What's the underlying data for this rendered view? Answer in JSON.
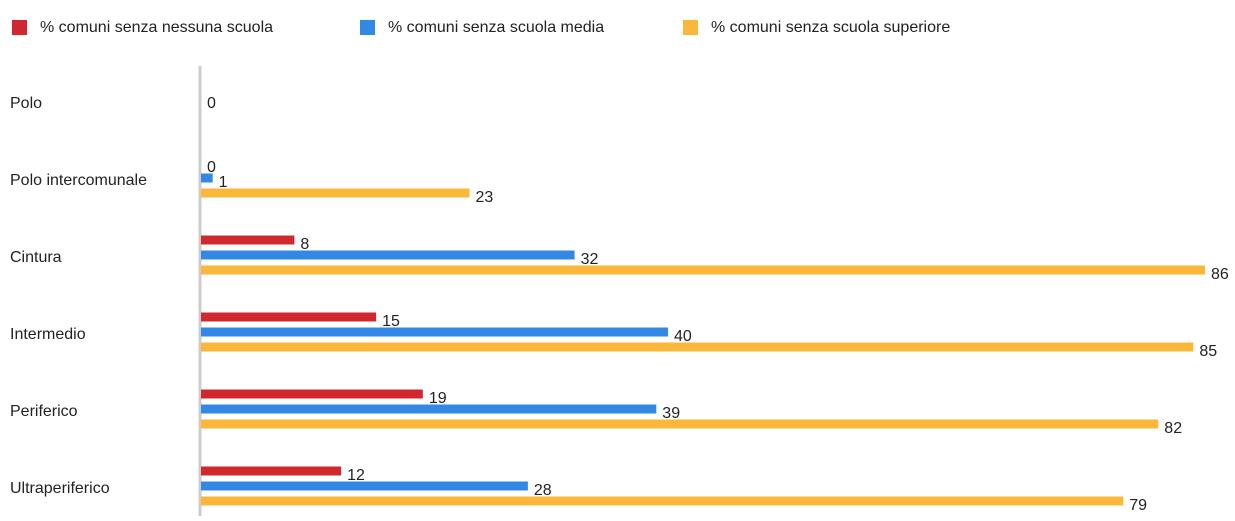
{
  "chart_data": {
    "type": "bar",
    "orientation": "horizontal",
    "categories": [
      "Polo",
      "Polo intercomunale",
      "Cintura",
      "Intermedio",
      "Periferico",
      "Ultraperiferico"
    ],
    "series": [
      {
        "name": "% comuni senza nessuna scuola",
        "color": "#d0282f",
        "values": [
          null,
          0,
          8,
          15,
          19,
          12
        ]
      },
      {
        "name": "% comuni senza scuola media",
        "color": "#3388e6",
        "values": [
          0,
          1,
          32,
          40,
          39,
          28
        ]
      },
      {
        "name": "% comuni senza scuola superiore",
        "color": "#fbb73a",
        "values": [
          null,
          23,
          86,
          85,
          82,
          79
        ]
      }
    ],
    "xlim": [
      0,
      86
    ],
    "legend": "top"
  }
}
